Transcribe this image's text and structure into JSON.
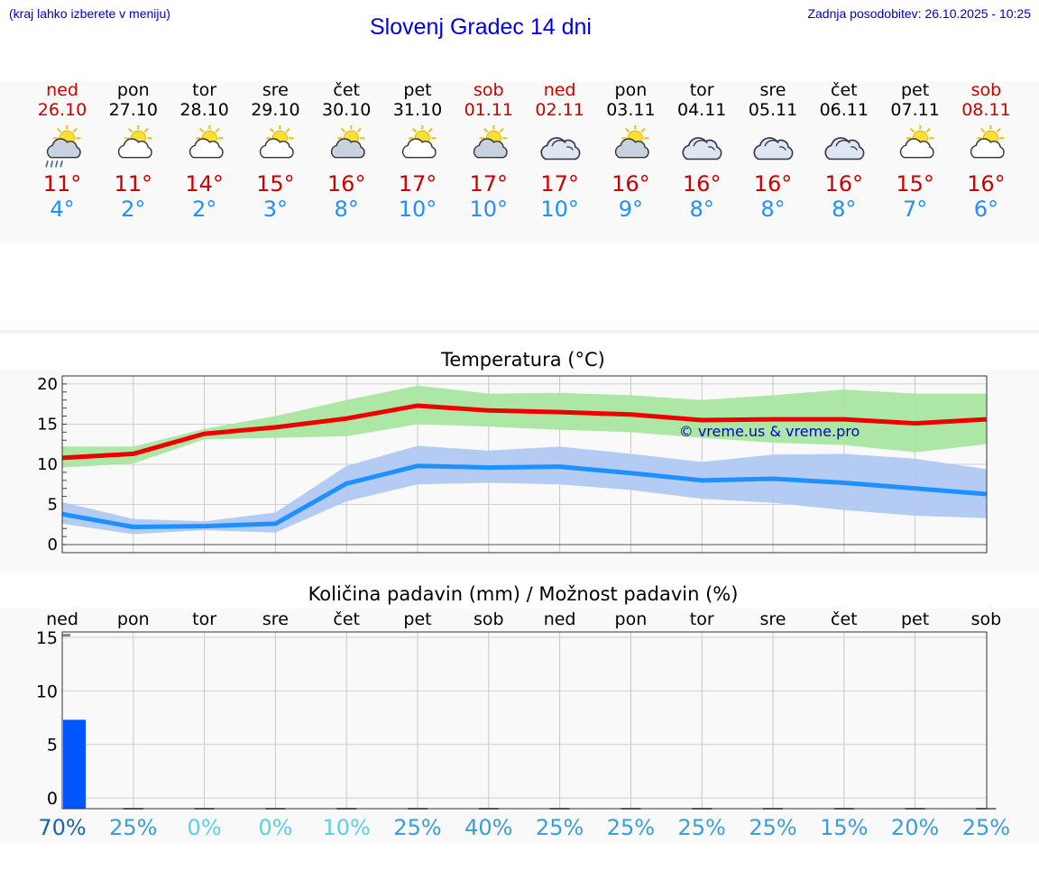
{
  "header": {
    "hint": "(kraj lahko izberete v meniju)",
    "title": "Slovenj Gradec 14 dni",
    "updated": "Zadnja posodobitev: 26.10.2025 - 10:25"
  },
  "days": [
    {
      "name": "ned",
      "date": "26.10",
      "weekend": true,
      "icon": "sun-cloud-rain-icon",
      "tmax": "11°",
      "tmin": "4°"
    },
    {
      "name": "pon",
      "date": "27.10",
      "weekend": false,
      "icon": "sun-cloud-icon",
      "tmax": "11°",
      "tmin": "2°"
    },
    {
      "name": "tor",
      "date": "28.10",
      "weekend": false,
      "icon": "sun-cloud-icon",
      "tmax": "14°",
      "tmin": "2°"
    },
    {
      "name": "sre",
      "date": "29.10",
      "weekend": false,
      "icon": "sun-cloud-icon",
      "tmax": "15°",
      "tmin": "3°"
    },
    {
      "name": "čet",
      "date": "30.10",
      "weekend": false,
      "icon": "sun-cloud-gray-icon",
      "tmax": "16°",
      "tmin": "8°"
    },
    {
      "name": "pet",
      "date": "31.10",
      "weekend": false,
      "icon": "sun-cloud-icon",
      "tmax": "17°",
      "tmin": "10°"
    },
    {
      "name": "sob",
      "date": "01.11",
      "weekend": true,
      "icon": "sun-cloud-gray-icon",
      "tmax": "17°",
      "tmin": "10°"
    },
    {
      "name": "ned",
      "date": "02.11",
      "weekend": true,
      "icon": "cloudy-icon",
      "tmax": "17°",
      "tmin": "10°"
    },
    {
      "name": "pon",
      "date": "03.11",
      "weekend": false,
      "icon": "sun-cloud-gray-icon",
      "tmax": "16°",
      "tmin": "9°"
    },
    {
      "name": "tor",
      "date": "04.11",
      "weekend": false,
      "icon": "cloudy-icon",
      "tmax": "16°",
      "tmin": "8°"
    },
    {
      "name": "sre",
      "date": "05.11",
      "weekend": false,
      "icon": "cloudy-icon",
      "tmax": "16°",
      "tmin": "8°"
    },
    {
      "name": "čet",
      "date": "06.11",
      "weekend": false,
      "icon": "cloudy-icon",
      "tmax": "16°",
      "tmin": "8°"
    },
    {
      "name": "pet",
      "date": "07.11",
      "weekend": false,
      "icon": "sun-cloud-icon",
      "tmax": "15°",
      "tmin": "7°"
    },
    {
      "name": "sob",
      "date": "08.11",
      "weekend": true,
      "icon": "sun-cloud-icon",
      "tmax": "16°",
      "tmin": "6°"
    }
  ],
  "chart_data": [
    {
      "type": "line",
      "title": "Temperatura (°C)",
      "watermark": "© vreme.us & vreme.pro",
      "ylim": [
        -1,
        21
      ],
      "yticks": [
        0,
        5,
        10,
        15,
        20
      ],
      "grid": true,
      "x": [
        "26.10",
        "27.10",
        "28.10",
        "29.10",
        "30.10",
        "31.10",
        "01.11",
        "02.11",
        "03.11",
        "04.11",
        "05.11",
        "06.11",
        "07.11",
        "08.11"
      ],
      "series": [
        {
          "role": "max",
          "color": "#ee0000",
          "values": [
            10.8,
            11.3,
            13.8,
            14.6,
            15.7,
            17.3,
            16.7,
            16.5,
            16.2,
            15.5,
            15.6,
            15.6,
            15.1,
            15.6
          ]
        },
        {
          "role": "max-range",
          "color": "#a8e6a0",
          "upper": [
            12.2,
            12.2,
            14.4,
            16.0,
            18.0,
            19.8,
            18.8,
            18.9,
            18.6,
            18.0,
            18.6,
            19.3,
            18.8,
            18.8
          ],
          "lower": [
            9.6,
            10.1,
            13.1,
            13.3,
            13.5,
            15.0,
            14.7,
            14.3,
            14.0,
            13.3,
            12.7,
            12.4,
            11.5,
            12.5
          ]
        },
        {
          "role": "min",
          "color": "#1e90ff",
          "values": [
            3.8,
            2.2,
            2.3,
            2.6,
            7.6,
            9.8,
            9.6,
            9.7,
            8.9,
            8.0,
            8.2,
            7.7,
            7.0,
            6.3
          ]
        },
        {
          "role": "min-range",
          "color": "#b0c8f2",
          "upper": [
            5.3,
            3.2,
            2.9,
            4.0,
            9.8,
            12.3,
            11.7,
            12.2,
            11.3,
            10.3,
            11.2,
            11.3,
            10.7,
            9.4
          ],
          "lower": [
            2.6,
            1.3,
            1.8,
            1.5,
            5.4,
            7.5,
            7.7,
            7.5,
            6.8,
            5.7,
            5.2,
            4.3,
            3.6,
            3.3
          ]
        }
      ]
    },
    {
      "type": "bar",
      "title": "Količina padavin (mm) / Možnost padavin (%)",
      "ylim": [
        -1,
        15.5
      ],
      "yticks": [
        0,
        5,
        10,
        15
      ],
      "grid": true,
      "categories": [
        "ned",
        "pon",
        "tor",
        "sre",
        "čet",
        "pet",
        "sob",
        "ned",
        "pon",
        "tor",
        "sre",
        "čet",
        "pet",
        "sob"
      ],
      "values": [
        7.3,
        0,
        0,
        0,
        0,
        0,
        0,
        0,
        0,
        0,
        0,
        0,
        0,
        0
      ],
      "bar_color": "#0055ff",
      "probability": [
        "70%",
        "25%",
        "0%",
        "0%",
        "10%",
        "25%",
        "40%",
        "25%",
        "25%",
        "25%",
        "25%",
        "15%",
        "20%",
        "25%"
      ],
      "probability_colors": [
        "#1566a8",
        "#3a9ed8",
        "#5cd0e8",
        "#5cd0e8",
        "#5cd0e8",
        "#3a9ed8",
        "#3a9ed8",
        "#3a9ed8",
        "#3a9ed8",
        "#3a9ed8",
        "#3a9ed8",
        "#3a9ed8",
        "#3a9ed8",
        "#3a9ed8"
      ]
    }
  ]
}
